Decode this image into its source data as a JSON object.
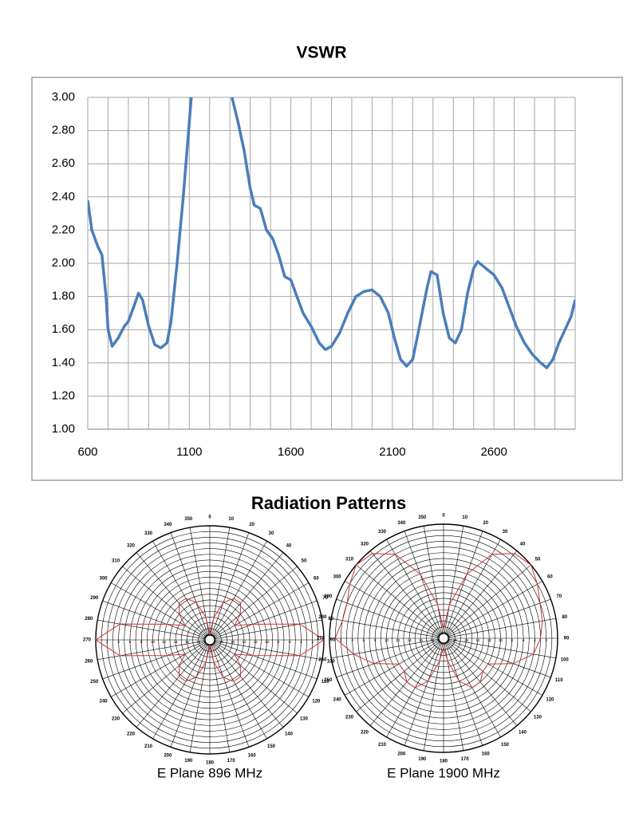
{
  "section_title": "Radiation Patterns",
  "chart_data": [
    {
      "type": "line",
      "title": "VSWR",
      "color": "#4a7ebb",
      "x": [
        600,
        620,
        650,
        670,
        690,
        700,
        720,
        750,
        780,
        800,
        830,
        850,
        870,
        900,
        930,
        960,
        990,
        1010,
        1040,
        1070,
        1100,
        1110,
        1200,
        1310,
        1340,
        1370,
        1400,
        1420,
        1450,
        1480,
        1510,
        1540,
        1570,
        1600,
        1630,
        1660,
        1700,
        1740,
        1770,
        1800,
        1840,
        1880,
        1920,
        1960,
        2000,
        2040,
        2080,
        2110,
        2140,
        2170,
        2200,
        2230,
        2270,
        2290,
        2320,
        2350,
        2380,
        2410,
        2440,
        2470,
        2500,
        2520,
        2550,
        2600,
        2640,
        2680,
        2710,
        2750,
        2790,
        2830,
        2860,
        2890,
        2920,
        2950,
        2980,
        3000
      ],
      "values": [
        2.38,
        2.2,
        2.1,
        2.05,
        1.8,
        1.6,
        1.5,
        1.55,
        1.62,
        1.65,
        1.75,
        1.82,
        1.78,
        1.62,
        1.51,
        1.49,
        1.52,
        1.65,
        2.0,
        2.4,
        2.85,
        3.0,
        null,
        3.0,
        2.85,
        2.68,
        2.45,
        2.35,
        2.33,
        2.2,
        2.15,
        2.05,
        1.92,
        1.9,
        1.8,
        1.7,
        1.62,
        1.52,
        1.48,
        1.5,
        1.58,
        1.7,
        1.8,
        1.83,
        1.84,
        1.8,
        1.7,
        1.55,
        1.42,
        1.38,
        1.42,
        1.6,
        1.85,
        1.95,
        1.93,
        1.7,
        1.55,
        1.52,
        1.6,
        1.82,
        1.97,
        2.01,
        1.98,
        1.93,
        1.85,
        1.72,
        1.62,
        1.52,
        1.45,
        1.4,
        1.37,
        1.42,
        1.52,
        1.6,
        1.68,
        1.78
      ],
      "xlim": [
        600,
        3000
      ],
      "xticks": [
        600,
        1100,
        1600,
        2100,
        2600
      ],
      "xgrid": [
        600,
        700,
        800,
        900,
        1000,
        1100,
        1200,
        1300,
        1400,
        1500,
        1600,
        1700,
        1800,
        1900,
        2000,
        2100,
        2200,
        2300,
        2400,
        2500,
        2600,
        2700,
        2800,
        2900,
        3000
      ],
      "ylim": [
        1,
        3
      ],
      "yticks": [
        {
          "value": 1,
          "label": "1.00"
        },
        {
          "value": 1.2,
          "label": "1.20"
        },
        {
          "value": 1.4,
          "label": "1.40"
        },
        {
          "value": 1.6,
          "label": "1.60"
        },
        {
          "value": 1.8,
          "label": "1.80"
        },
        {
          "value": 2,
          "label": "2.00"
        },
        {
          "value": 2.2,
          "label": "2.20"
        },
        {
          "value": 2.4,
          "label": "2.40"
        },
        {
          "value": 2.6,
          "label": "2.60"
        },
        {
          "value": 2.8,
          "label": "2.80"
        },
        {
          "value": 3,
          "label": "3.00"
        }
      ],
      "grid": true
    },
    {
      "type": "polar",
      "title": "E Plane 896 MHz",
      "color": "#d03030",
      "theta": [
        0,
        10,
        20,
        30,
        40,
        50,
        60,
        70,
        80,
        90,
        100,
        110,
        120,
        130,
        140,
        150,
        160,
        170,
        180,
        190,
        200,
        210,
        220,
        230,
        240,
        250,
        260,
        270,
        280,
        290,
        300,
        310,
        320,
        330,
        340,
        350
      ],
      "values": [
        19,
        16,
        13,
        11.6,
        11.6,
        13,
        15,
        12,
        4,
        0,
        4,
        12,
        15,
        13,
        11.6,
        11.6,
        13,
        16,
        19,
        16,
        13,
        11.6,
        11.6,
        13,
        15,
        12,
        4,
        0,
        4,
        12,
        15,
        13,
        11.6,
        11.6,
        13,
        16
      ],
      "rlim": [
        20,
        0
      ],
      "rticks": [
        2,
        4,
        6,
        8,
        10,
        12,
        14,
        16,
        18
      ],
      "rgrid": [
        0,
        1,
        2,
        3,
        4,
        5,
        6,
        7,
        8,
        9,
        10,
        11,
        12,
        13,
        14,
        15,
        16,
        17,
        18,
        19
      ]
    },
    {
      "type": "polar",
      "title": "E Plane 1900 MHz",
      "color": "#d03030",
      "theta": [
        0,
        10,
        20,
        30,
        40,
        50,
        60,
        70,
        80,
        90,
        100,
        110,
        120,
        130,
        140,
        150,
        160,
        170,
        180,
        190,
        200,
        210,
        220,
        230,
        240,
        250,
        260,
        270,
        280,
        290,
        300,
        310,
        320,
        330,
        340,
        350
      ],
      "values": [
        18.4,
        14,
        8,
        3,
        0.6,
        0,
        1,
        2,
        2.4,
        3,
        4,
        7,
        11,
        11,
        10,
        10,
        12,
        16,
        18.4,
        16,
        12,
        10,
        10,
        11,
        11,
        7,
        4,
        1,
        2,
        2,
        1,
        0,
        0.6,
        3,
        8,
        14
      ],
      "rlim": [
        20,
        0
      ],
      "rticks": [
        2,
        4,
        6,
        8,
        10,
        12,
        14,
        16,
        18
      ],
      "rgrid": [
        0,
        1,
        2,
        3,
        4,
        5,
        6,
        7,
        8,
        9,
        10,
        11,
        12,
        13,
        14,
        15,
        16,
        17,
        18,
        19
      ]
    }
  ]
}
